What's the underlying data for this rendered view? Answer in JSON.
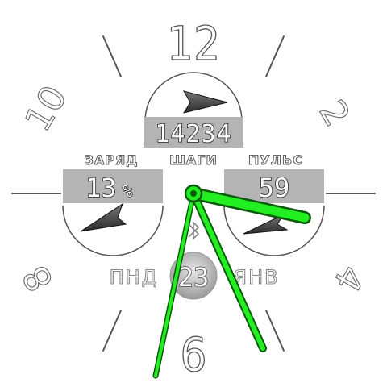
{
  "dial": {
    "numeral_12": "12",
    "numeral_2": "2",
    "numeral_4": "4",
    "numeral_6": "6",
    "numeral_8": "8",
    "numeral_10": "10"
  },
  "steps": {
    "value": "14234",
    "label": "ШАГИ"
  },
  "battery": {
    "label": "ЗАРЯД",
    "value": "13",
    "unit": "%",
    "percent": 13
  },
  "pulse": {
    "label": "ПУЛЬС",
    "value": "59"
  },
  "date": {
    "weekday": "ПНД",
    "day": "23",
    "month": "ЯНВ"
  },
  "status_icon": "bluetooth-icon",
  "colors": {
    "hands": "#22ee22",
    "hand_outline": "#0a5a0a",
    "box": "#b4b4b4",
    "outline": "#555555"
  }
}
